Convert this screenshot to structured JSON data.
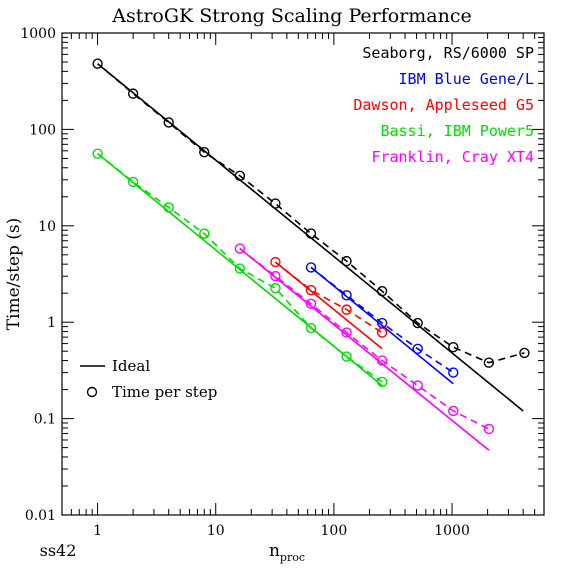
{
  "chart_data": {
    "type": "line",
    "title": "AstroGK Strong Scaling Performance",
    "xlabel_main": "n",
    "xlabel_sub": "proc",
    "ylabel": "Time/step (s)",
    "footer_label": "ss42",
    "x_scale": "log",
    "y_scale": "log",
    "xlim": [
      0.5,
      6000
    ],
    "ylim": [
      0.01,
      1000
    ],
    "x_ticks": [
      {
        "value": 1,
        "label": "1"
      },
      {
        "value": 10,
        "label": "10"
      },
      {
        "value": 100,
        "label": "100"
      },
      {
        "value": 1000,
        "label": "1000"
      }
    ],
    "y_ticks": [
      {
        "value": 0.01,
        "label": "0.01"
      },
      {
        "value": 0.1,
        "label": "0.1"
      },
      {
        "value": 1,
        "label": "1"
      },
      {
        "value": 10,
        "label": "10"
      },
      {
        "value": 100,
        "label": "100"
      },
      {
        "value": 1000,
        "label": "1000"
      }
    ],
    "grid": false,
    "legend_position": "top-right",
    "style_legend_position": "bottom-left",
    "style_legend": [
      {
        "label": "Ideal",
        "style": "line"
      },
      {
        "label": "Time per step",
        "style": "circle"
      }
    ],
    "series": [
      {
        "name": "Seaborg, RS/6000 SP",
        "color": "#000000",
        "ideal": [
          [
            1,
            480
          ],
          [
            4000,
            0.12
          ]
        ],
        "measured": [
          [
            1,
            480
          ],
          [
            2,
            235
          ],
          [
            4,
            118
          ],
          [
            8,
            58
          ],
          [
            16,
            33
          ],
          [
            32,
            17
          ],
          [
            64,
            8.3
          ],
          [
            128,
            4.3
          ],
          [
            256,
            2.1
          ],
          [
            512,
            0.98
          ],
          [
            1024,
            0.55
          ],
          [
            2048,
            0.38
          ],
          [
            4096,
            0.48
          ]
        ]
      },
      {
        "name": "IBM Blue Gene/L",
        "color": "#0000ff",
        "ideal": [
          [
            64,
            3.7
          ],
          [
            1024,
            0.23
          ]
        ],
        "measured": [
          [
            64,
            3.7
          ],
          [
            128,
            1.9
          ],
          [
            256,
            0.98
          ],
          [
            512,
            0.53
          ],
          [
            1024,
            0.3
          ]
        ]
      },
      {
        "name": "Dawson, Appleseed G5",
        "color": "#ff0000",
        "ideal": [
          [
            32,
            4.2
          ],
          [
            256,
            0.53
          ]
        ],
        "measured": [
          [
            32,
            4.2
          ],
          [
            64,
            2.15
          ],
          [
            128,
            1.35
          ],
          [
            256,
            0.78
          ]
        ]
      },
      {
        "name": "Bassi, IBM Power5",
        "color": "#00dd00",
        "ideal": [
          [
            1,
            56
          ],
          [
            256,
            0.22
          ]
        ],
        "measured": [
          [
            1,
            56
          ],
          [
            2,
            28.5
          ],
          [
            4,
            15.5
          ],
          [
            8,
            8.3
          ],
          [
            16,
            3.6
          ],
          [
            32,
            2.25
          ],
          [
            64,
            0.87
          ],
          [
            128,
            0.44
          ],
          [
            256,
            0.24
          ]
        ]
      },
      {
        "name": "Franklin, Cray XT4",
        "color": "#ff00ff",
        "ideal": [
          [
            16,
            5.8
          ],
          [
            2048,
            0.047
          ]
        ],
        "measured": [
          [
            16,
            5.8
          ],
          [
            32,
            3.0
          ],
          [
            64,
            1.55
          ],
          [
            128,
            0.78
          ],
          [
            256,
            0.4
          ],
          [
            512,
            0.22
          ],
          [
            1024,
            0.12
          ],
          [
            2048,
            0.078
          ]
        ]
      }
    ]
  }
}
